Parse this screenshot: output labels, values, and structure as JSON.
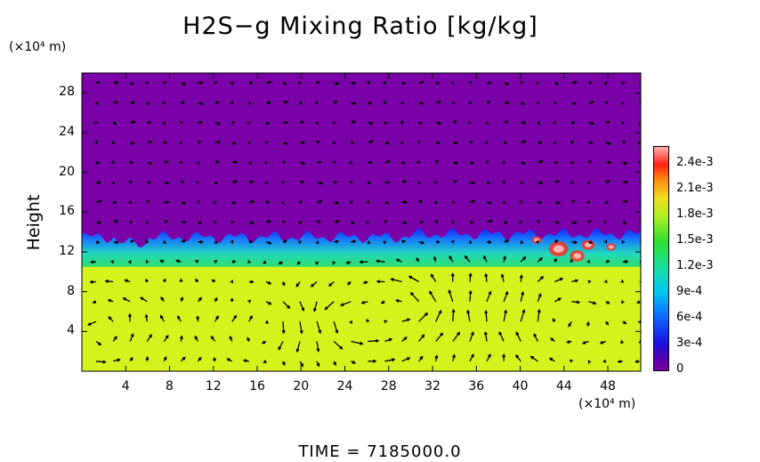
{
  "chart_data": {
    "type": "heatmap",
    "title": "H2S−g Mixing Ratio [kg/kg]",
    "ylabel": "Height",
    "x_unit_label": "(×10⁴ m)",
    "y_unit_label": "(×10⁴ m)",
    "xlim": [
      0,
      51
    ],
    "ylim": [
      0,
      30
    ],
    "x_ticks": [
      "4",
      "8",
      "12",
      "16",
      "20",
      "24",
      "28",
      "32",
      "36",
      "40",
      "44",
      "48"
    ],
    "y_ticks": [
      "4",
      "8",
      "12",
      "16",
      "20",
      "24",
      "28"
    ],
    "colorbar": {
      "min": 0,
      "max": 0.0026,
      "tick_labels": [
        "0",
        "3e-4",
        "6e-4",
        "9e-4",
        "1.2e-3",
        "1.5e-3",
        "1.8e-3",
        "2.1e-3",
        "2.4e-3"
      ],
      "tick_values": [
        0,
        0.0003,
        0.0006,
        0.0009,
        0.0012,
        0.0015,
        0.0018,
        0.0021,
        0.0024
      ]
    },
    "layers": [
      {
        "region": "lower layer (0 to ~10.5)",
        "value": 0.00175
      },
      {
        "region": "transition (~10.5 to ~13.5)",
        "value": 0.0013
      },
      {
        "region": "upper layer (above ~14)",
        "value": 0
      }
    ],
    "interface_height": 13.5,
    "overlay": "velocity vector arrows",
    "time_label": "TIME",
    "time_value": "7185000.0"
  },
  "colors": {
    "background_field": "#7a00a8",
    "lower_field": "#d6f21c",
    "boundary_blue": "#1030ff",
    "transition_green": "#38e03a",
    "arrow": "#000000"
  }
}
